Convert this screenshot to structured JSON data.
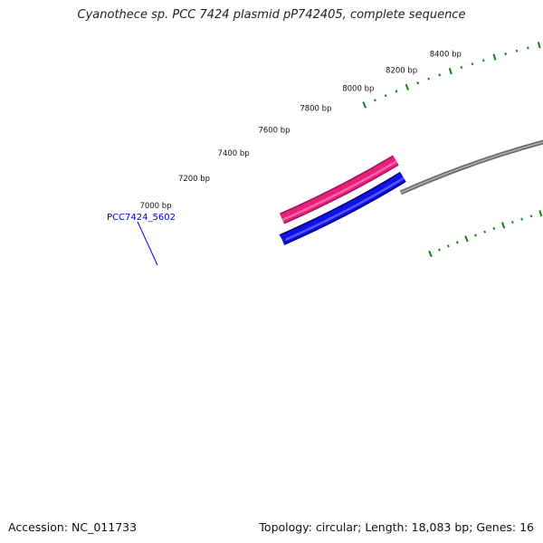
{
  "title": "Cyanothece sp. PCC 7424 plasmid pP742405, complete sequence",
  "footer": {
    "accession": "Accession: NC_011733",
    "summary": "Topology: circular; Length: 18,083 bp; Genes: 16"
  },
  "colors": {
    "backbone": "#8a8a8a",
    "tick": "#1a7a1a",
    "gene_forward": "#e8207a",
    "gene_reverse": "#1010e8",
    "gene_label": "#0000cc"
  },
  "ruler": {
    "labels": [
      {
        "bp": 7000,
        "text": "7000 bp"
      },
      {
        "bp": 7200,
        "text": "7200 bp"
      },
      {
        "bp": 7400,
        "text": "7400 bp"
      },
      {
        "bp": 7600,
        "text": "7600 bp"
      },
      {
        "bp": 7800,
        "text": "7800 bp"
      },
      {
        "bp": 8000,
        "text": "8000 bp"
      },
      {
        "bp": 8200,
        "text": "8200 bp"
      },
      {
        "bp": 8400,
        "text": "8400 bp"
      }
    ]
  },
  "genes": [
    {
      "label": "PCC7424_5602",
      "strand": "forward"
    },
    {
      "label": "",
      "strand": "reverse"
    }
  ]
}
